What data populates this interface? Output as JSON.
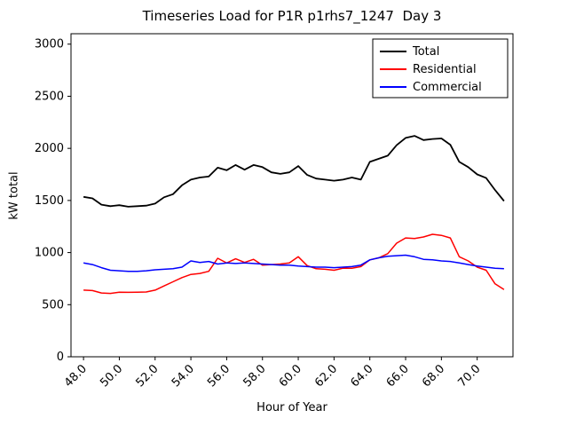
{
  "figure": {
    "background": "#ffffff"
  },
  "chart_data": {
    "type": "line",
    "title": "Timeseries Load for P1R p1rhs7_1247  Day 3",
    "xlabel": "Hour of Year",
    "ylabel": "kW total",
    "xlim": [
      47.3,
      72.0
    ],
    "ylim": [
      0,
      3100
    ],
    "xticks": [
      48,
      50,
      52,
      54,
      56,
      58,
      60,
      62,
      64,
      66,
      68,
      70
    ],
    "xtick_labels": [
      "48.0",
      "50.0",
      "52.0",
      "54.0",
      "56.0",
      "58.0",
      "60.0",
      "62.0",
      "64.0",
      "66.0",
      "68.0",
      "70.0"
    ],
    "yticks": [
      0,
      500,
      1000,
      1500,
      2000,
      2500,
      3000
    ],
    "ytick_labels": [
      "0",
      "500",
      "1000",
      "1500",
      "2000",
      "2500",
      "3000"
    ],
    "grid": false,
    "legend": {
      "position": "upper right",
      "entries": [
        "Total",
        "Residential",
        "Commercial"
      ]
    },
    "x": [
      48.0,
      48.5,
      49.0,
      49.5,
      50.0,
      50.5,
      51.0,
      51.5,
      52.0,
      52.5,
      53.0,
      53.5,
      54.0,
      54.5,
      55.0,
      55.5,
      56.0,
      56.5,
      57.0,
      57.5,
      58.0,
      58.5,
      59.0,
      59.5,
      60.0,
      60.5,
      61.0,
      61.5,
      62.0,
      62.5,
      63.0,
      63.5,
      64.0,
      64.5,
      65.0,
      65.5,
      66.0,
      66.5,
      67.0,
      67.5,
      68.0,
      68.5,
      69.0,
      69.5,
      70.0,
      70.5,
      71.0,
      71.5
    ],
    "series": [
      {
        "name": "Total",
        "color": "#000000",
        "linewidth": 1.8,
        "values": [
          1535,
          1520,
          1460,
          1445,
          1455,
          1440,
          1445,
          1450,
          1470,
          1530,
          1560,
          1645,
          1700,
          1720,
          1730,
          1815,
          1790,
          1840,
          1795,
          1840,
          1820,
          1770,
          1755,
          1770,
          1830,
          1745,
          1710,
          1700,
          1690,
          1700,
          1720,
          1700,
          1870,
          1900,
          1930,
          2030,
          2100,
          2120,
          2080,
          2090,
          2095,
          2035,
          1870,
          1820,
          1750,
          1715,
          1600,
          1495
        ]
      },
      {
        "name": "Residential",
        "color": "#ff0000",
        "linewidth": 1.5,
        "values": [
          640,
          635,
          612,
          608,
          620,
          618,
          620,
          622,
          640,
          680,
          720,
          760,
          790,
          800,
          820,
          945,
          900,
          940,
          905,
          935,
          880,
          885,
          890,
          900,
          960,
          875,
          845,
          840,
          830,
          850,
          850,
          865,
          930,
          950,
          990,
          1090,
          1140,
          1135,
          1150,
          1175,
          1165,
          1140,
          960,
          920,
          860,
          830,
          700,
          645
        ]
      },
      {
        "name": "Commercial",
        "color": "#0000ff",
        "linewidth": 1.5,
        "values": [
          900,
          885,
          855,
          830,
          825,
          820,
          820,
          825,
          835,
          840,
          845,
          860,
          920,
          905,
          915,
          890,
          900,
          895,
          900,
          895,
          890,
          885,
          880,
          880,
          870,
          865,
          860,
          860,
          855,
          860,
          865,
          880,
          930,
          950,
          965,
          970,
          975,
          960,
          935,
          930,
          920,
          915,
          900,
          885,
          870,
          860,
          850,
          845
        ]
      }
    ]
  }
}
